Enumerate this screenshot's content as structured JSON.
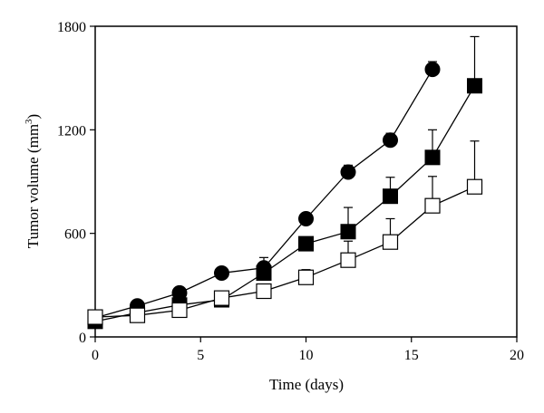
{
  "chart_data": {
    "type": "line",
    "title": "",
    "xlabel": "Time (days)",
    "ylabel_main": "Tumor volume (mm",
    "ylabel_sup": "3",
    "ylabel_close": ")",
    "xlim": [
      0,
      20
    ],
    "ylim": [
      0,
      1800
    ],
    "xticks": [
      0,
      5,
      10,
      15,
      20
    ],
    "yticks": [
      0,
      600,
      1200,
      1800
    ],
    "xtick_labels": [
      "0",
      "5",
      "10",
      "15",
      "20"
    ],
    "ytick_labels": [
      "0",
      "600",
      "1200",
      "1800"
    ],
    "grid": false,
    "legend": "none",
    "series": [
      {
        "marker": "filled-circle",
        "color": "#000000",
        "x": [
          0,
          2,
          4,
          6,
          8,
          10,
          12,
          14,
          16
        ],
        "y": [
          110,
          180,
          255,
          370,
          400,
          685,
          955,
          1140,
          1550
        ],
        "err": [
          0,
          0,
          0,
          0,
          60,
          0,
          40,
          40,
          45
        ]
      },
      {
        "marker": "filled-square",
        "color": "#000000",
        "x": [
          0,
          2,
          4,
          6,
          8,
          10,
          12,
          14,
          16,
          18
        ],
        "y": [
          90,
          140,
          185,
          215,
          370,
          540,
          610,
          815,
          1040,
          1455
        ],
        "err": [
          0,
          0,
          0,
          0,
          60,
          0,
          140,
          110,
          160,
          285
        ]
      },
      {
        "marker": "open-square",
        "color": "#000000",
        "x": [
          0,
          2,
          4,
          6,
          8,
          10,
          12,
          14,
          16,
          18
        ],
        "y": [
          115,
          125,
          155,
          225,
          265,
          345,
          445,
          550,
          760,
          870
        ],
        "err": [
          0,
          0,
          0,
          35,
          0,
          45,
          110,
          135,
          170,
          265
        ]
      }
    ]
  }
}
